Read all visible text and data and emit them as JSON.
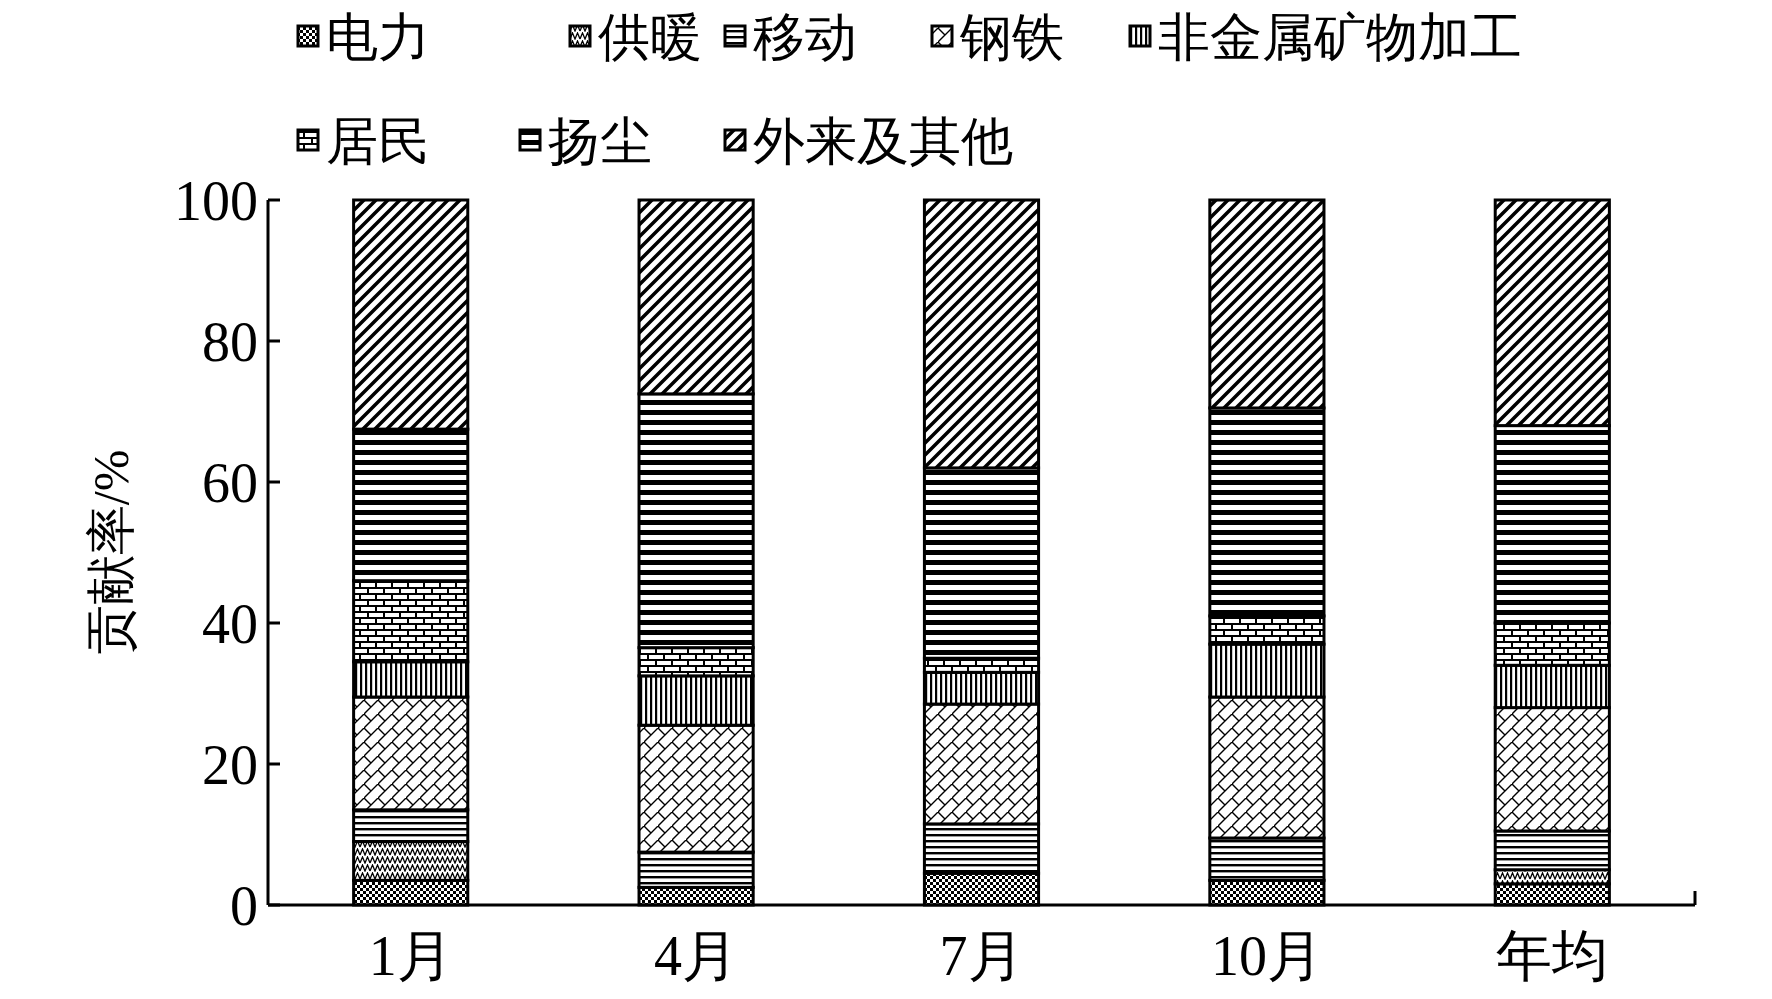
{
  "chart_data": {
    "type": "bar",
    "stacked": true,
    "ylabel": "贡献率/%",
    "categories": [
      "1月",
      "4月",
      "7月",
      "10月",
      "年均"
    ],
    "ylim": [
      0,
      100
    ],
    "yticks": [
      0,
      20,
      40,
      60,
      80,
      100
    ],
    "legend": "top",
    "grid": false,
    "series": [
      {
        "name": "电力",
        "color": "#000000",
        "values": [
          3.5,
          2.5,
          4.5,
          3.5,
          3
        ]
      },
      {
        "name": "供暖",
        "color": "#000000",
        "values": [
          5.5,
          0,
          0,
          0,
          2
        ]
      },
      {
        "name": "移动",
        "color": "#000000",
        "values": [
          4.5,
          5,
          7,
          6,
          5.5
        ]
      },
      {
        "name": "钢铁",
        "color": "#000000",
        "values": [
          16,
          18,
          17,
          20,
          17.5
        ]
      },
      {
        "name": "非金属矿物加工",
        "color": "#000000",
        "values": [
          5,
          7,
          4.5,
          7.5,
          6
        ]
      },
      {
        "name": "居民",
        "color": "#000000",
        "values": [
          11.5,
          4,
          2,
          4,
          6
        ]
      },
      {
        "name": "扬尘",
        "color": "#000000",
        "values": [
          21.5,
          36,
          27,
          29.5,
          28
        ]
      },
      {
        "name": "外来及其他",
        "color": "#000000",
        "values": [
          32.5,
          27.5,
          38,
          29.5,
          32
        ]
      }
    ]
  }
}
